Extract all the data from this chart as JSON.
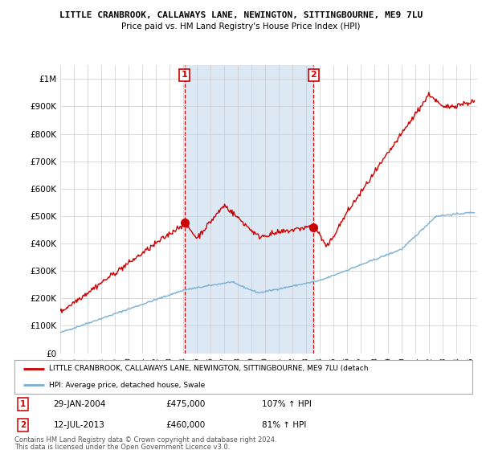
{
  "title_line1": "LITTLE CRANBROOK, CALLAWAYS LANE, NEWINGTON, SITTINGBOURNE, ME9 7LU",
  "title_line2": "Price paid vs. HM Land Registry's House Price Index (HPI)",
  "ytick_values": [
    0,
    100000,
    200000,
    300000,
    400000,
    500000,
    600000,
    700000,
    800000,
    900000,
    1000000
  ],
  "ylim": [
    0,
    1050000
  ],
  "xlim_start": 1995.0,
  "xlim_end": 2025.5,
  "xtick_years": [
    1995,
    1996,
    1997,
    1998,
    1999,
    2000,
    2001,
    2002,
    2003,
    2004,
    2005,
    2006,
    2007,
    2008,
    2009,
    2010,
    2011,
    2012,
    2013,
    2014,
    2015,
    2016,
    2017,
    2018,
    2019,
    2020,
    2021,
    2022,
    2023,
    2024,
    2025
  ],
  "sale1_x": 2004.08,
  "sale1_y": 475000,
  "sale2_x": 2013.54,
  "sale2_y": 460000,
  "sale1_date": "29-JAN-2004",
  "sale1_price": "£475,000",
  "sale1_hpi": "107% ↑ HPI",
  "sale2_date": "12-JUL-2013",
  "sale2_price": "£460,000",
  "sale2_hpi": "81% ↑ HPI",
  "hpi_color": "#7bafd4",
  "sale_color": "#cc0000",
  "shade_color": "#dce9f5",
  "legend_label_sale": "LITTLE CRANBROOK, CALLAWAYS LANE, NEWINGTON, SITTINGBOURNE, ME9 7LU (detach",
  "legend_label_hpi": "HPI: Average price, detached house, Swale",
  "footer_line1": "Contains HM Land Registry data © Crown copyright and database right 2024.",
  "footer_line2": "This data is licensed under the Open Government Licence v3.0.",
  "background_color": "#ffffff",
  "grid_color": "#cccccc"
}
